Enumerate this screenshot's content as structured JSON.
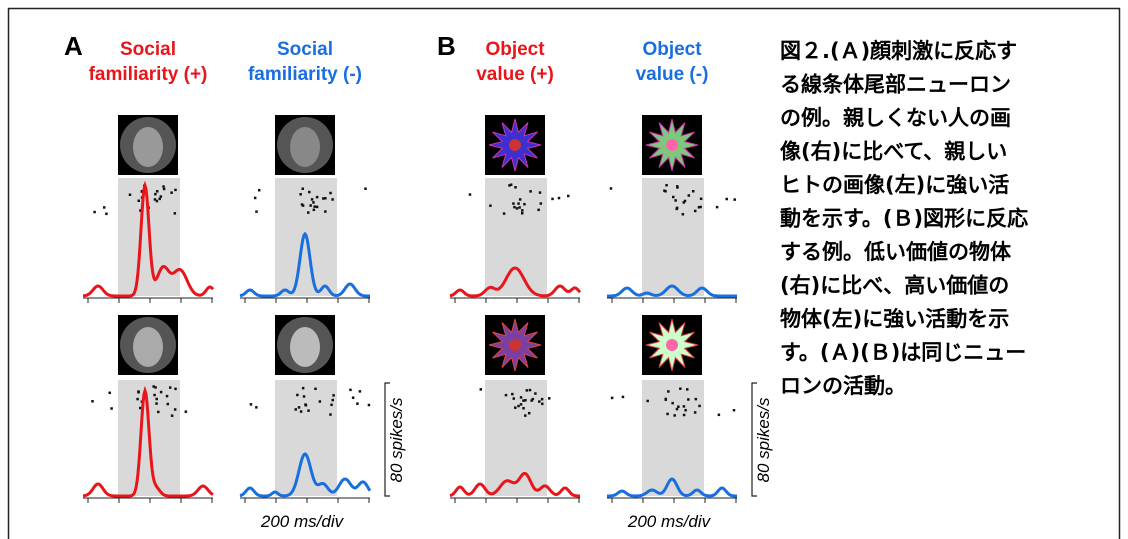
{
  "figure": {
    "panels": [
      {
        "letter": "A",
        "columns": [
          {
            "title": [
              "Social",
              "familiarity (+)"
            ]
          },
          {
            "title": [
              "Social",
              "familiarity (-)"
            ]
          }
        ],
        "scale_y": "80 spikes/s",
        "scale_x": "200 ms/div"
      },
      {
        "letter": "B",
        "columns": [
          {
            "title": [
              "Object",
              "value (+)"
            ]
          },
          {
            "title": [
              "Object",
              "value (-)"
            ]
          }
        ],
        "scale_y": "80 spikes/s",
        "scale_x": "200 ms/div"
      }
    ]
  },
  "caption": {
    "lines": [
      "図２.(Ａ)顔刺激に反応す",
      "る線条体尾部ニューロン",
      "の例。親しくない人の画",
      "像(右)に比べて、親しい",
      "ヒトの画像(左)に強い活",
      "動を示す。(Ｂ)図形に反応",
      "する例。低い価値の物体",
      "(右)に比べ、高い価値の",
      "物体(左)に強い活動を示",
      "す。(Ａ)(Ｂ)は同じニュー",
      "ロンの活動。"
    ]
  }
}
